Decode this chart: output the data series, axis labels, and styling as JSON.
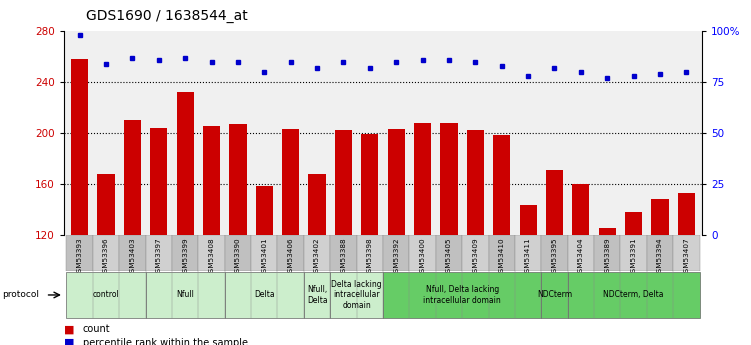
{
  "title": "GDS1690 / 1638544_at",
  "samples": [
    "GSM53393",
    "GSM53396",
    "GSM53403",
    "GSM53397",
    "GSM53399",
    "GSM53408",
    "GSM53390",
    "GSM53401",
    "GSM53406",
    "GSM53402",
    "GSM53388",
    "GSM53398",
    "GSM53392",
    "GSM53400",
    "GSM53405",
    "GSM53409",
    "GSM53410",
    "GSM53411",
    "GSM53395",
    "GSM53404",
    "GSM53389",
    "GSM53391",
    "GSM53394",
    "GSM53407"
  ],
  "counts": [
    258,
    168,
    210,
    204,
    232,
    205,
    207,
    158,
    203,
    168,
    202,
    199,
    203,
    208,
    208,
    202,
    198,
    143,
    171,
    160,
    125,
    138,
    148,
    153
  ],
  "percentiles": [
    98,
    84,
    87,
    86,
    87,
    85,
    85,
    80,
    85,
    82,
    85,
    82,
    85,
    86,
    86,
    85,
    83,
    78,
    82,
    80,
    77,
    78,
    79,
    80
  ],
  "ylim_left": [
    120,
    280
  ],
  "ylim_right": [
    0,
    100
  ],
  "yticks_left": [
    120,
    160,
    200,
    240,
    280
  ],
  "yticks_right": [
    0,
    25,
    50,
    75,
    100
  ],
  "ytick_labels_right": [
    "0",
    "25",
    "50",
    "75",
    "100%"
  ],
  "bar_color": "#cc0000",
  "dot_color": "#0000cc",
  "protocol_groups": [
    {
      "label": "control",
      "start": 0,
      "end": 2,
      "color": "#cceecc"
    },
    {
      "label": "Nfull",
      "start": 3,
      "end": 5,
      "color": "#cceecc"
    },
    {
      "label": "Delta",
      "start": 6,
      "end": 8,
      "color": "#cceecc"
    },
    {
      "label": "Nfull,\nDelta",
      "start": 9,
      "end": 9,
      "color": "#cceecc"
    },
    {
      "label": "Delta lacking\nintracellular\ndomain",
      "start": 10,
      "end": 11,
      "color": "#cceecc"
    },
    {
      "label": "Nfull, Delta lacking\nintracellular domain",
      "start": 12,
      "end": 17,
      "color": "#66cc66"
    },
    {
      "label": "NDCterm",
      "start": 18,
      "end": 18,
      "color": "#66cc66"
    },
    {
      "label": "NDCterm, Delta",
      "start": 19,
      "end": 23,
      "color": "#66cc66"
    }
  ]
}
